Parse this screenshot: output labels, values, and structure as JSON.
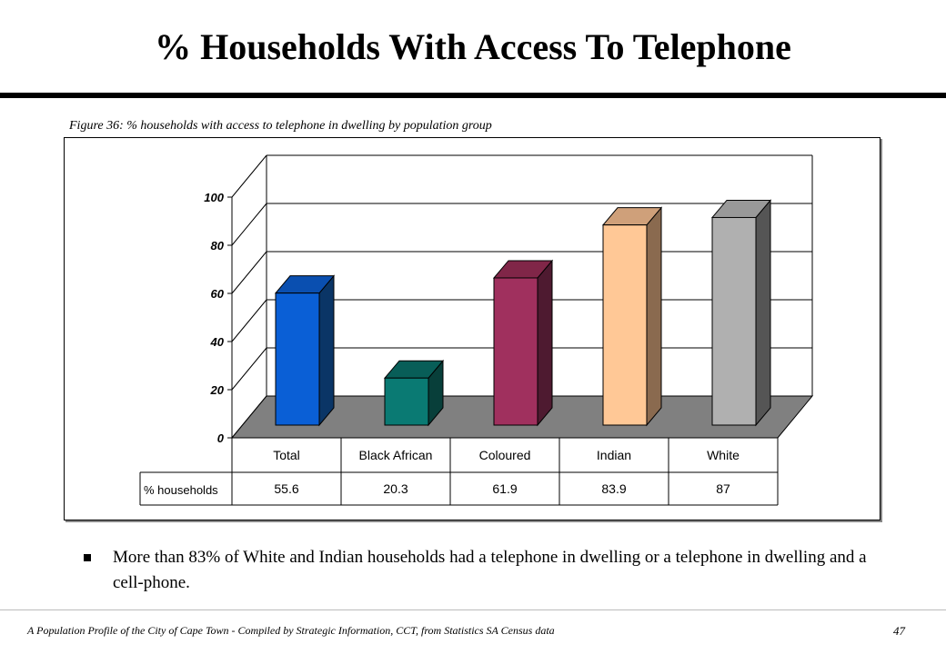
{
  "slide": {
    "title": "% Households With Access To Telephone",
    "caption": "Figure 36: %  households with access to telephone in dwelling by population group",
    "bullet": "More than  83% of White and Indian households had a telephone in dwelling or a telephone in dwelling and a cell-phone.",
    "footer": "A Population Profile of the City of Cape Town - Compiled by Strategic Information, CCT, from Statistics SA Census data",
    "page_number": "47"
  },
  "chart_data": {
    "type": "bar",
    "categories": [
      "Total",
      "Black African",
      "Coloured",
      "Indian",
      "White"
    ],
    "series": [
      {
        "name": "% households",
        "values": [
          55.6,
          20.3,
          61.9,
          83.9,
          87
        ],
        "value_labels": [
          "55.6",
          "20.3",
          "61.9",
          "83.9",
          "87"
        ]
      }
    ],
    "bar_colors": [
      "#0a5fd6",
      "#0a7a73",
      "#a0305e",
      "#ffc896",
      "#b0b0b0"
    ],
    "bar_side_colors": [
      "#0a3566",
      "#083f3a",
      "#4e1a30",
      "#8a6a4f",
      "#555555"
    ],
    "bar_top_colors": [
      "#0a4fb0",
      "#085e58",
      "#802648",
      "#cfa07a",
      "#999999"
    ],
    "floor_color": "#808080",
    "ylim": [
      0,
      100
    ],
    "yticks": [
      0,
      20,
      40,
      60,
      80,
      100
    ],
    "ytick_labels": [
      "0",
      "20",
      "40",
      "60",
      "80",
      "100"
    ],
    "grid": true,
    "data_table": true,
    "legend": "none"
  }
}
